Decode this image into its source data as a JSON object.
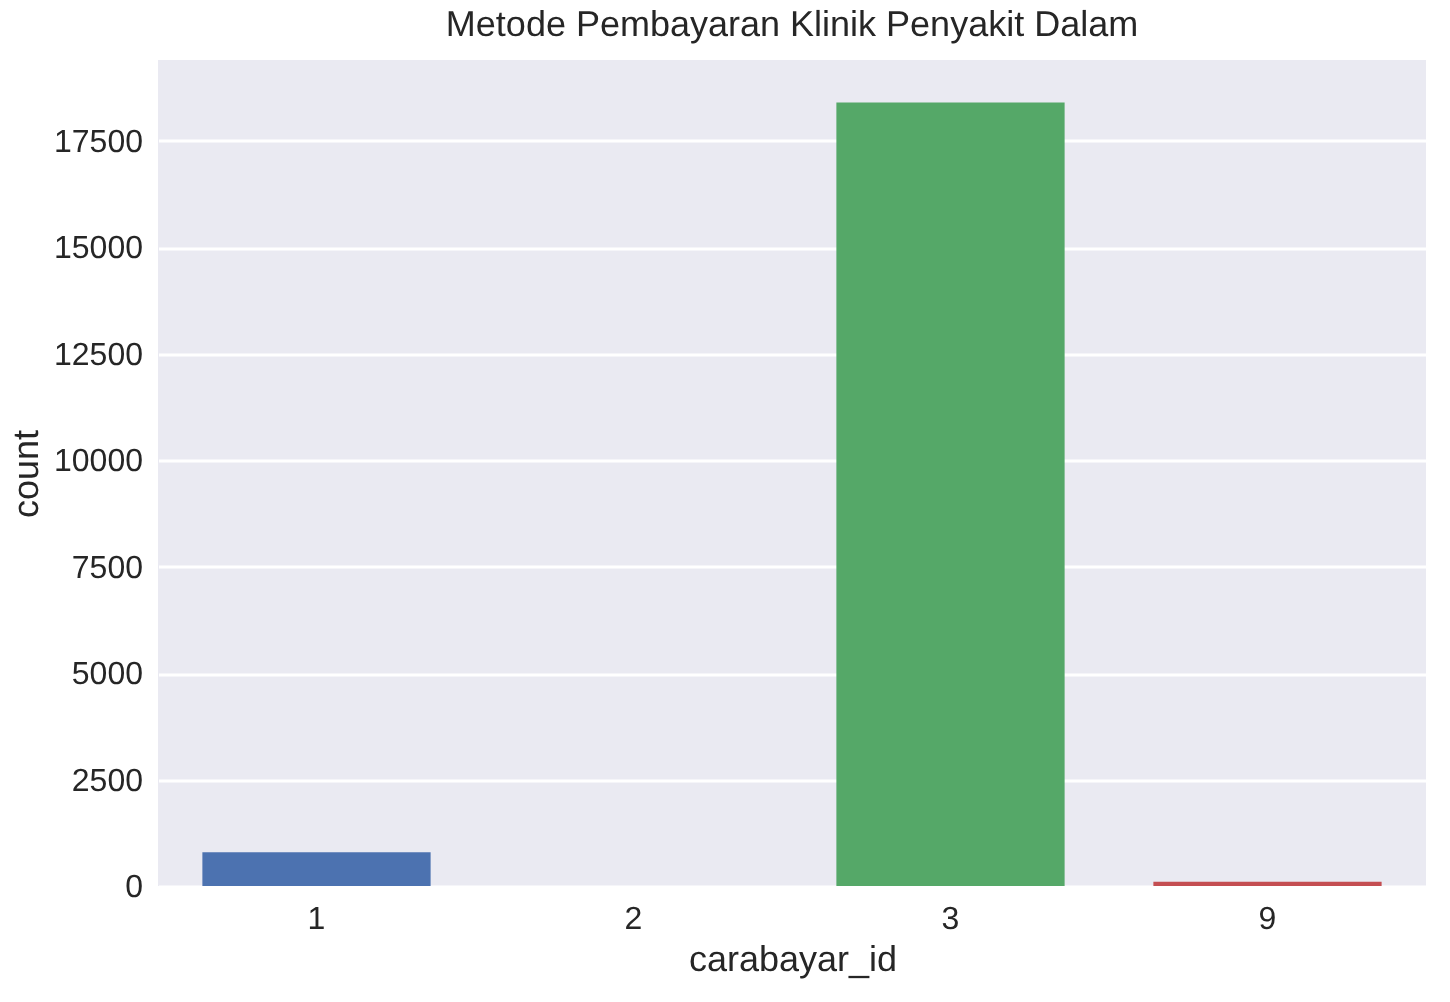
{
  "chart_data": {
    "type": "bar",
    "title": "Metode Pembayaran Klinik Penyakit Dalam",
    "xlabel": "carabayar_id",
    "ylabel": "count",
    "categories": [
      "1",
      "2",
      "3",
      "9"
    ],
    "values": [
      790,
      0,
      18400,
      100
    ],
    "colors": [
      "#4c72b0",
      "#dd8452",
      "#55a868",
      "#c44e52"
    ],
    "ylim": [
      0,
      19400
    ],
    "yticks": [
      0,
      2500,
      5000,
      7500,
      10000,
      12500,
      15000,
      17500
    ],
    "grid": "y"
  }
}
